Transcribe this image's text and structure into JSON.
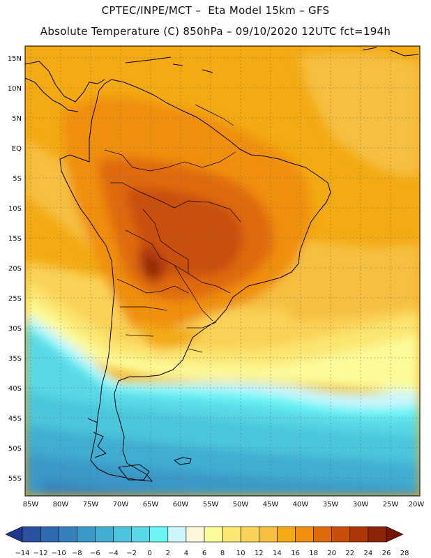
{
  "header": {
    "line1": "CPTEC/INPE/MCT –  Eta Model 15km – GFS",
    "line2": "Absolute Temperature (C) 850hPa – 09/10/2020 12UTC fct=194h"
  },
  "map": {
    "lat_labels": [
      "15N",
      "10N",
      "5N",
      "EQ",
      "5S",
      "10S",
      "15S",
      "20S",
      "25S",
      "30S",
      "35S",
      "40S",
      "45S",
      "50S",
      "55S"
    ],
    "lon_labels": [
      "85W",
      "80W",
      "75W",
      "70W",
      "65W",
      "60W",
      "55W",
      "50W",
      "45W",
      "40W",
      "35W",
      "30W",
      "25W",
      "20W"
    ]
  },
  "colorbar": {
    "labels": [
      "-14",
      "-12",
      "-10",
      "-8",
      "-6",
      "-4",
      "-2",
      "0",
      "2",
      "4",
      "6",
      "8",
      "10",
      "12",
      "14",
      "16",
      "18",
      "20",
      "22",
      "24",
      "26",
      "28"
    ],
    "colors": [
      "#20368e",
      "#2852a0",
      "#2e6ab0",
      "#3580bd",
      "#3a98c8",
      "#40add2",
      "#4cc6dc",
      "#5ad8e6",
      "#6af4f6",
      "#cdf6fb",
      "#fdf6da",
      "#fcfb9a",
      "#fbe672",
      "#f9d257",
      "#f6bf3f",
      "#f3aa13",
      "#f08f0e",
      "#df6a0a",
      "#c94f08",
      "#ae3707",
      "#8c2406",
      "#761404"
    ]
  }
}
